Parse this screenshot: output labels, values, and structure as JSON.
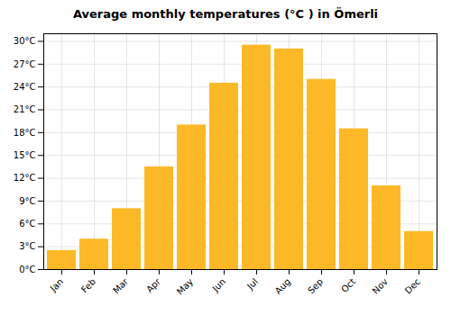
{
  "chart_data": {
    "type": "bar",
    "title": "Average monthly temperatures (°C ) in Ömerli",
    "categories": [
      "Jan",
      "Feb",
      "Mar",
      "Apr",
      "May",
      "Jun",
      "Jul",
      "Aug",
      "Sep",
      "Oct",
      "Nov",
      "Dec"
    ],
    "values": [
      2.5,
      4.0,
      8.0,
      13.5,
      19.0,
      24.5,
      29.5,
      29.0,
      25.0,
      18.5,
      11.0,
      5.0
    ],
    "color": "#FDB827",
    "ylim": [
      0,
      31
    ],
    "yticks": [
      {
        "value": 0,
        "label": "0°C"
      },
      {
        "value": 3,
        "label": "3°C"
      },
      {
        "value": 6,
        "label": "6°C"
      },
      {
        "value": 9,
        "label": "9°C"
      },
      {
        "value": 12,
        "label": "12°C"
      },
      {
        "value": 15,
        "label": "15°C"
      },
      {
        "value": 18,
        "label": "18°C"
      },
      {
        "value": 21,
        "label": "21°C"
      },
      {
        "value": 24,
        "label": "24°C"
      },
      {
        "value": 27,
        "label": "27°C"
      },
      {
        "value": 30,
        "label": "30°C"
      }
    ],
    "grid": true
  }
}
